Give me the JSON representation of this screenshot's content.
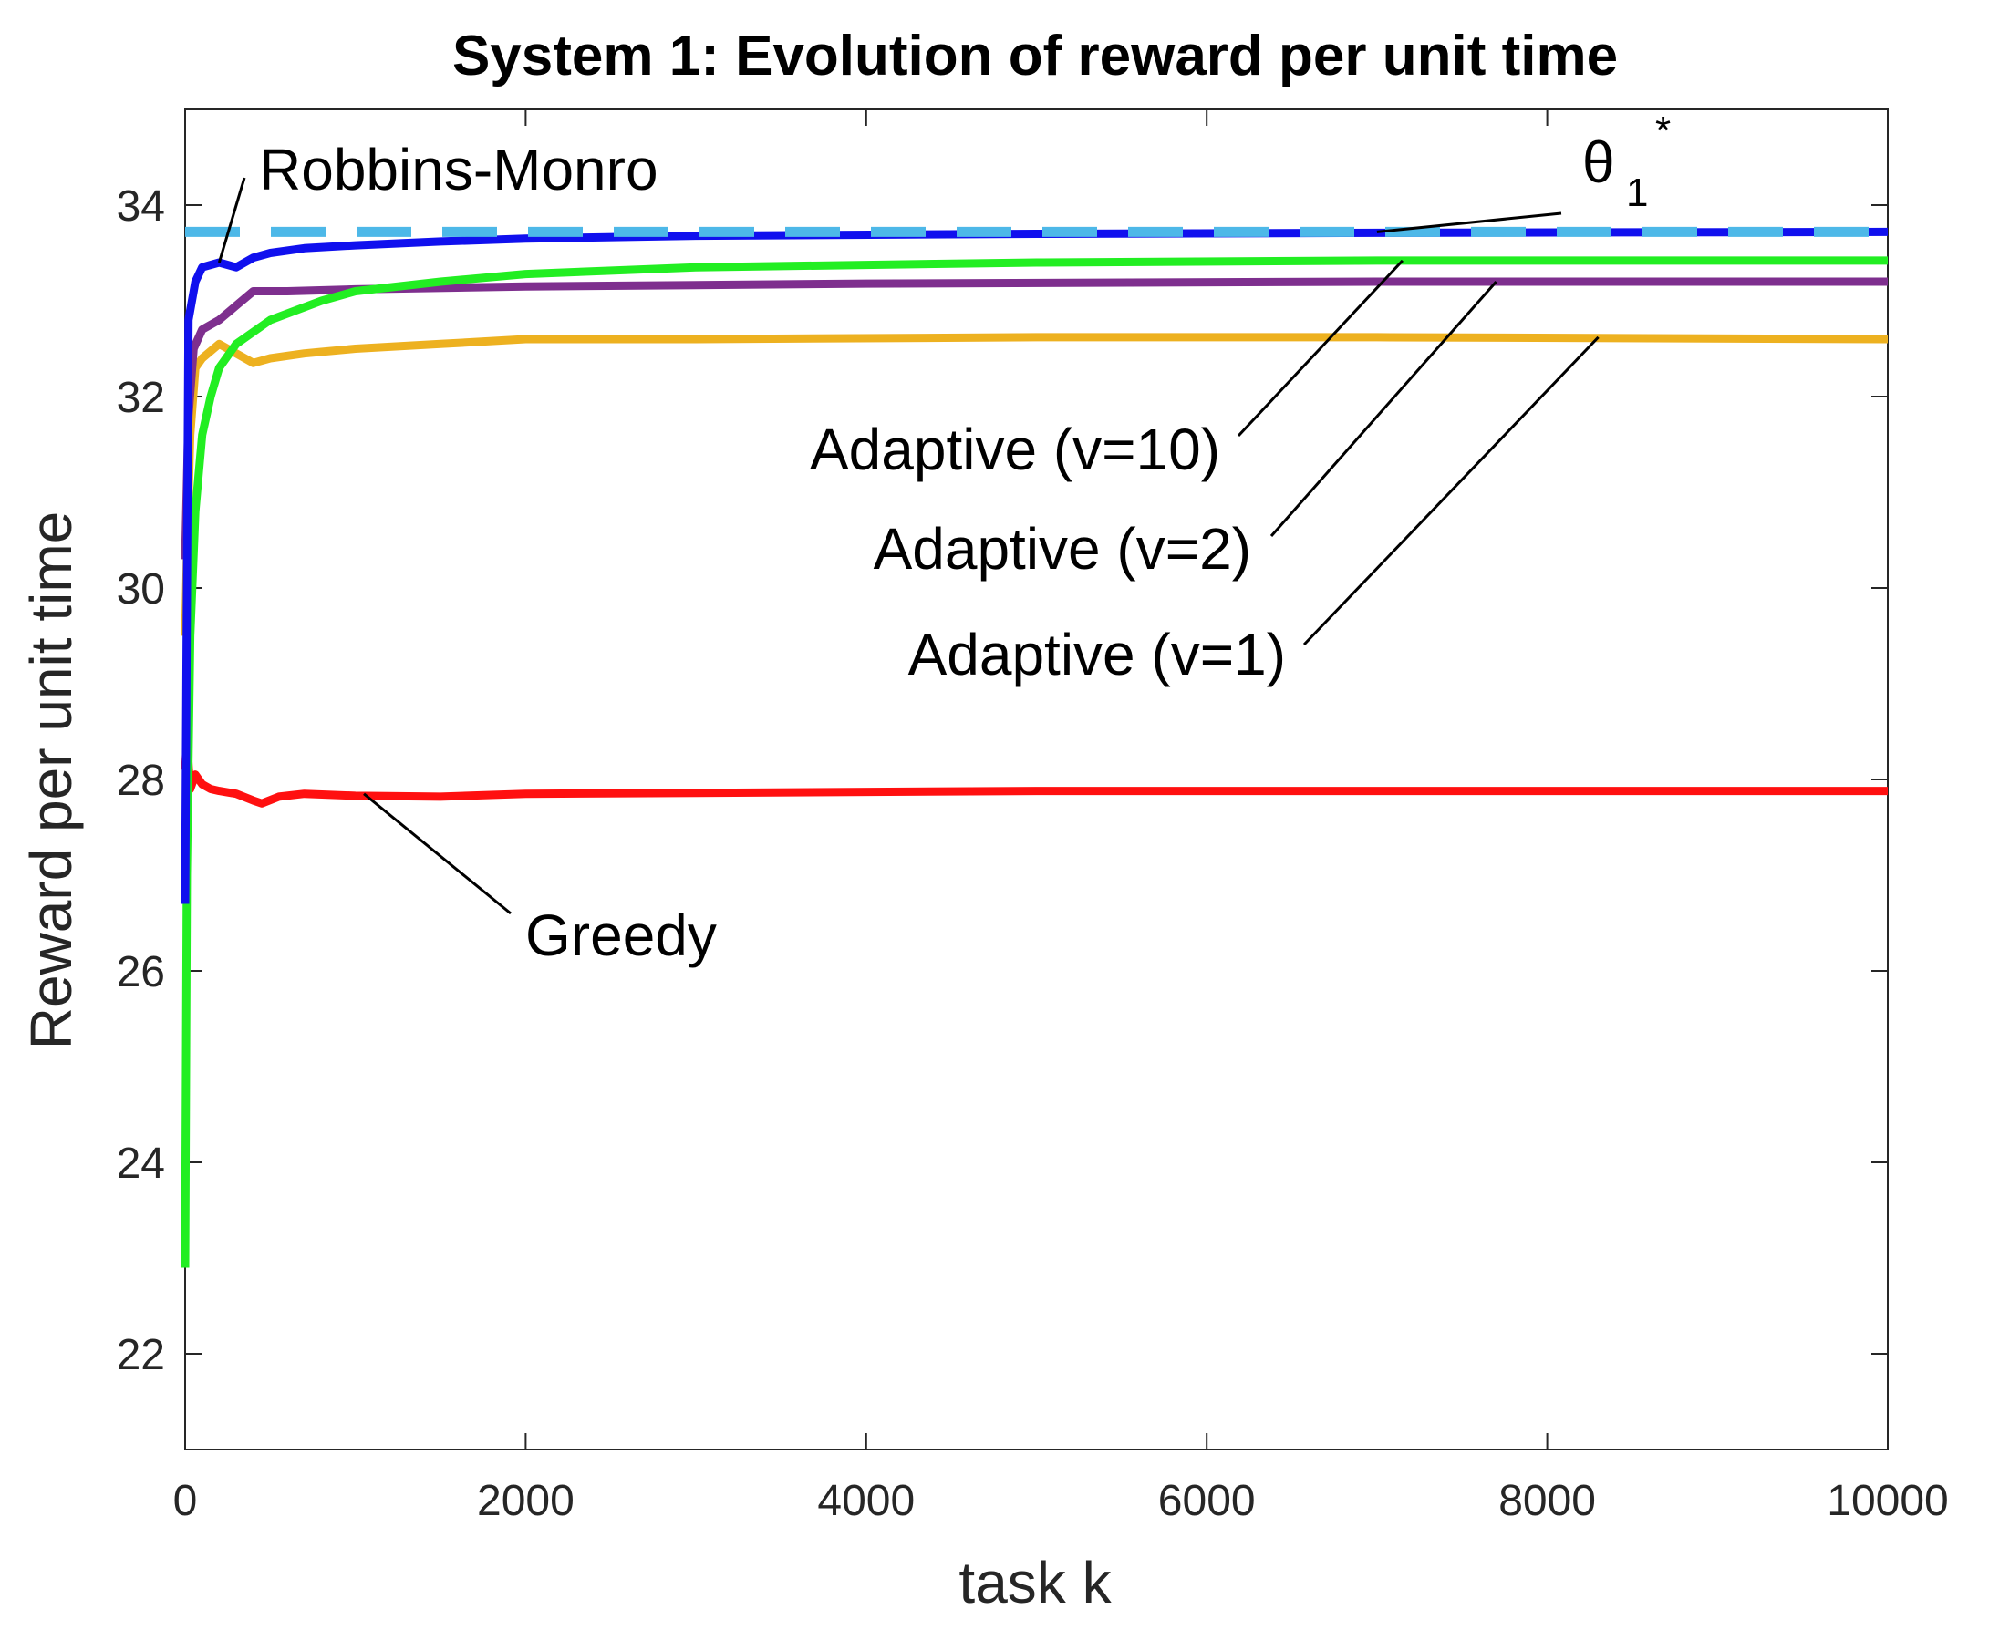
{
  "chart_data": {
    "type": "line",
    "title": "System 1: Evolution of reward per unit time",
    "xlabel": "task k",
    "ylabel": "Reward per unit time",
    "xlim": [
      0,
      10000
    ],
    "ylim": [
      21,
      35
    ],
    "xticks": [
      0,
      2000,
      4000,
      6000,
      8000,
      10000
    ],
    "yticks": [
      22,
      24,
      26,
      28,
      30,
      32,
      34
    ],
    "grid": false,
    "series": [
      {
        "name": "θ1*",
        "color": "#4db8e8",
        "style": "dashed",
        "x": [
          0,
          10000
        ],
        "y": [
          33.72,
          33.72
        ]
      },
      {
        "name": "Robbins-Monro",
        "color": "#1010ee",
        "style": "solid",
        "x": [
          0,
          20,
          60,
          100,
          200,
          300,
          400,
          500,
          700,
          1000,
          1500,
          2000,
          3000,
          5000,
          7000,
          10000
        ],
        "y": [
          26.7,
          32.8,
          33.2,
          33.35,
          33.4,
          33.35,
          33.45,
          33.5,
          33.55,
          33.58,
          33.62,
          33.65,
          33.68,
          33.7,
          33.71,
          33.72
        ]
      },
      {
        "name": "Adaptive (v=10)",
        "color": "#22ee22",
        "style": "solid",
        "x": [
          0,
          10,
          30,
          60,
          100,
          150,
          200,
          300,
          500,
          800,
          1000,
          1500,
          2000,
          3000,
          5000,
          7000,
          10000
        ],
        "y": [
          22.9,
          27.0,
          29.5,
          30.8,
          31.6,
          32.0,
          32.3,
          32.55,
          32.8,
          33.0,
          33.1,
          33.2,
          33.28,
          33.35,
          33.4,
          33.42,
          33.42
        ]
      },
      {
        "name": "Adaptive (v=2)",
        "color": "#7e2f8e",
        "style": "solid",
        "x": [
          0,
          20,
          50,
          100,
          200,
          300,
          400,
          600,
          1000,
          2000,
          4000,
          7000,
          10000
        ],
        "y": [
          30.3,
          31.8,
          32.5,
          32.7,
          32.8,
          32.95,
          33.1,
          33.1,
          33.12,
          33.15,
          33.18,
          33.2,
          33.2
        ]
      },
      {
        "name": "Adaptive (v=1)",
        "color": "#edb120",
        "style": "solid",
        "x": [
          0,
          10,
          30,
          60,
          100,
          200,
          300,
          400,
          500,
          700,
          1000,
          1500,
          2000,
          3000,
          5000,
          7000,
          10000
        ],
        "y": [
          29.5,
          30.3,
          31.6,
          32.3,
          32.4,
          32.55,
          32.45,
          32.35,
          32.4,
          32.45,
          32.5,
          32.55,
          32.6,
          32.6,
          32.62,
          32.62,
          32.6
        ]
      },
      {
        "name": "Greedy",
        "color": "#ff1010",
        "style": "solid",
        "x": [
          0,
          10,
          30,
          60,
          100,
          150,
          200,
          300,
          400,
          450,
          550,
          700,
          1000,
          1500,
          2000,
          3000,
          5000,
          7000,
          10000
        ],
        "y": [
          28.1,
          28.4,
          27.9,
          28.05,
          27.95,
          27.9,
          27.88,
          27.85,
          27.78,
          27.75,
          27.82,
          27.85,
          27.83,
          27.82,
          27.85,
          27.86,
          27.88,
          27.88,
          27.88
        ]
      }
    ],
    "annotations": [
      {
        "series": "Robbins-Monro",
        "text": "Robbins-Monro",
        "target_x": 200,
        "target_y": 33.4
      },
      {
        "series": "θ1*",
        "text_main": "θ",
        "text_sub": "1",
        "text_sup": "*",
        "target_x": 7000,
        "target_y": 33.72
      },
      {
        "series": "Adaptive (v=10)",
        "text": "Adaptive (v=10)",
        "target_x": 7150,
        "target_y": 33.42
      },
      {
        "series": "Adaptive (v=2)",
        "text": "Adaptive (v=2)",
        "target_x": 7700,
        "target_y": 33.2
      },
      {
        "series": "Adaptive (v=1)",
        "text": "Adaptive (v=1)",
        "target_x": 8300,
        "target_y": 32.62
      },
      {
        "series": "Greedy",
        "text": "Greedy",
        "target_x": 1050,
        "target_y": 27.85
      }
    ]
  }
}
